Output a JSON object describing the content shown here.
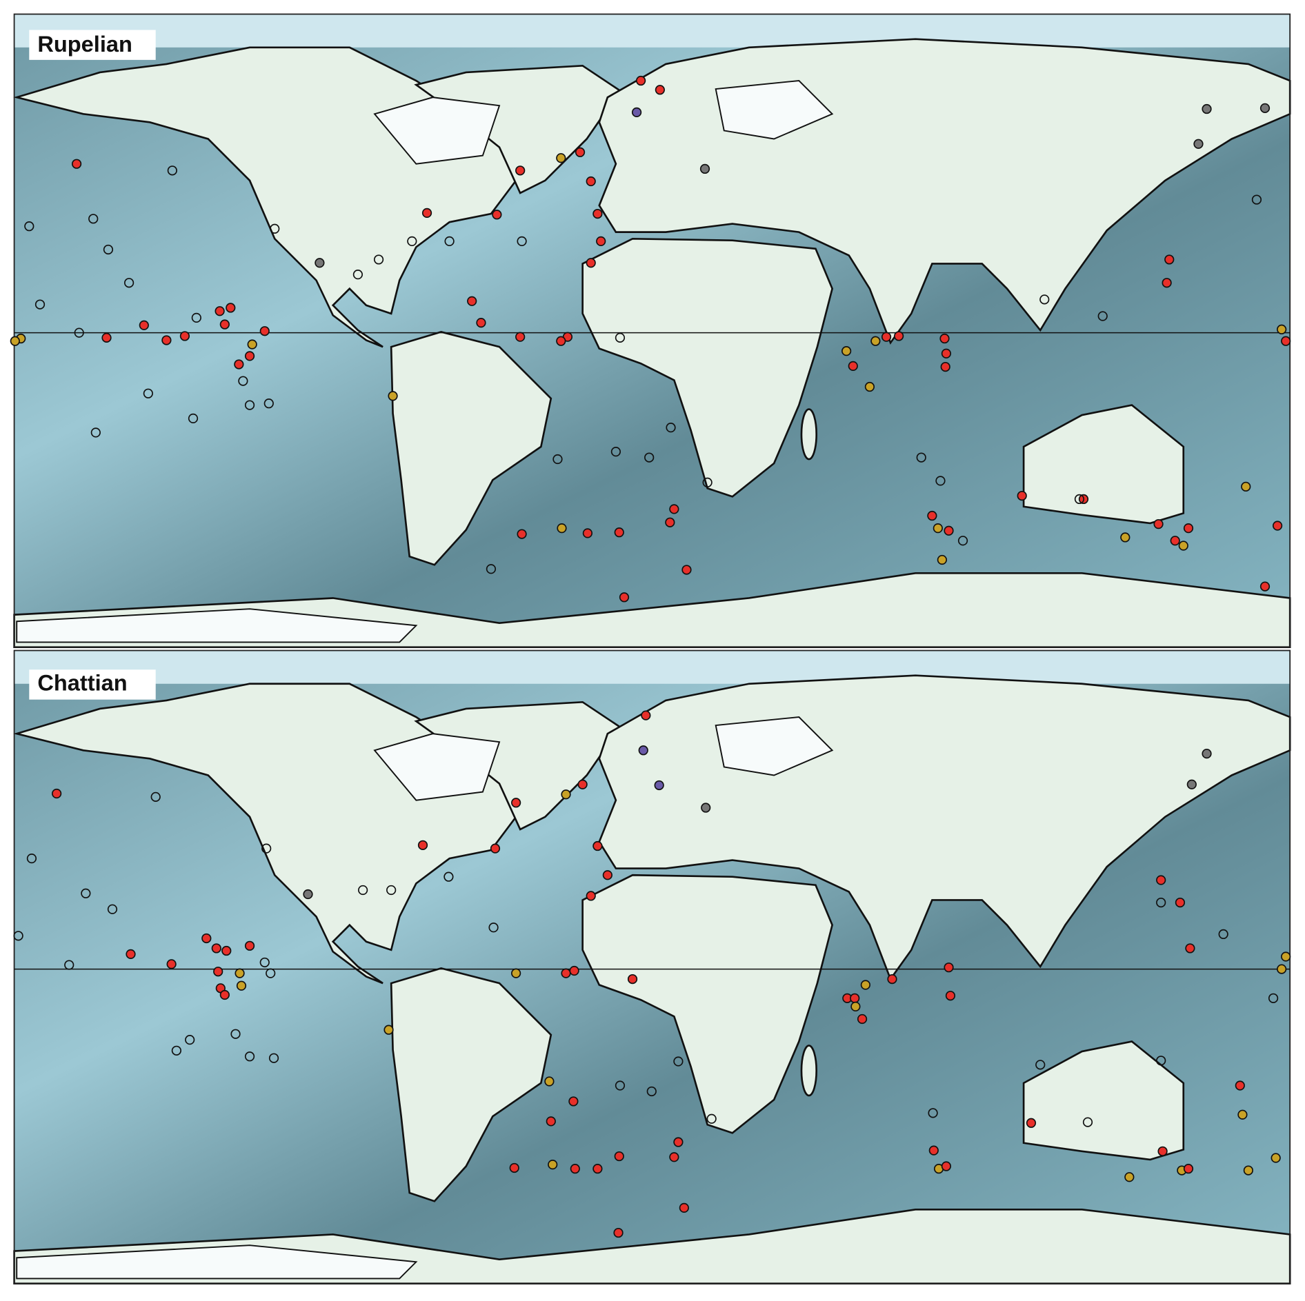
{
  "panels": [
    {
      "label": "Rupelian"
    },
    {
      "label": "Chattian"
    }
  ]
}
